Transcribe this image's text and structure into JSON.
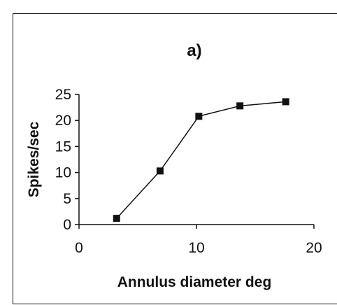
{
  "chart_data": {
    "type": "line",
    "title": "a)",
    "xlabel": "Annulus diameter deg",
    "ylabel": "Spikes/sec",
    "xlim": [
      0,
      20
    ],
    "ylim": [
      0,
      25
    ],
    "x_ticks": [
      "0",
      "10",
      "20"
    ],
    "y_ticks": [
      "0",
      "5",
      "10",
      "15",
      "20",
      "25"
    ],
    "grid": false,
    "legend": "none",
    "series": [
      {
        "marker": "square",
        "color": "#111111",
        "x": [
          3.2,
          6.9,
          10.2,
          13.7,
          17.6
        ],
        "y": [
          1.2,
          10.3,
          20.8,
          22.8,
          23.6
        ]
      }
    ]
  }
}
